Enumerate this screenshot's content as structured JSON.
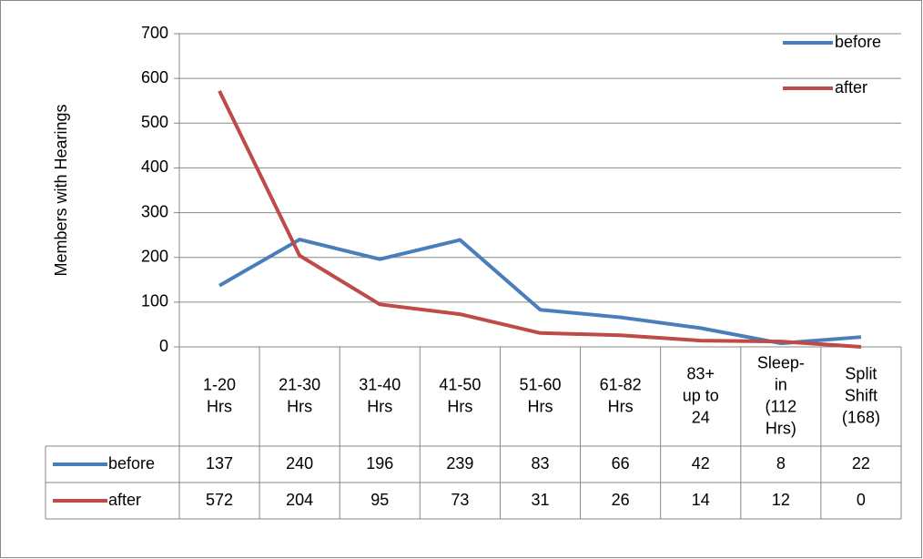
{
  "chart_data": {
    "type": "line",
    "y_label": "Members with Hearings",
    "categories": [
      "1-20\nHrs",
      "21-30\nHrs",
      "31-40\nHrs",
      "41-50\nHrs",
      "51-60\nHrs",
      "61-82\nHrs",
      "83+\nup to\n24",
      "Sleep-\nin\n(112\nHrs)",
      "Split\nShift\n(168)"
    ],
    "series": [
      {
        "name": "before",
        "color": "#4a7ebb",
        "values": [
          137,
          240,
          196,
          239,
          83,
          66,
          42,
          8,
          22
        ]
      },
      {
        "name": "after",
        "color": "#be4b48",
        "values": [
          572,
          204,
          95,
          73,
          31,
          26,
          14,
          12,
          0
        ]
      }
    ],
    "ylim": [
      0,
      700
    ],
    "yticks": [
      0,
      100,
      200,
      300,
      400,
      500,
      600,
      700
    ],
    "grid": true,
    "legend": "top-right",
    "data_table": true
  }
}
